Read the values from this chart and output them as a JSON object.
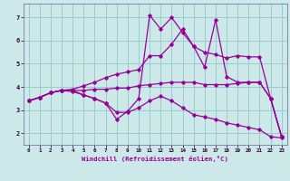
{
  "xlabel": "Windchill (Refroidissement éolien,°C)",
  "xlim": [
    -0.5,
    23.5
  ],
  "ylim": [
    1.5,
    7.6
  ],
  "xticks": [
    0,
    1,
    2,
    3,
    4,
    5,
    6,
    7,
    8,
    9,
    10,
    11,
    12,
    13,
    14,
    15,
    16,
    17,
    18,
    19,
    20,
    21,
    22,
    23
  ],
  "yticks": [
    2,
    3,
    4,
    5,
    6,
    7
  ],
  "bg_color": "#cce8e8",
  "grid_color": "#99cccc",
  "line_color": "#990099",
  "lines": [
    {
      "x": [
        0,
        1,
        2,
        3,
        4,
        5,
        6,
        7,
        8,
        9,
        10,
        11,
        12,
        13,
        14,
        15,
        16,
        17,
        18,
        19,
        20,
        21,
        22,
        23
      ],
      "y": [
        3.4,
        3.55,
        3.75,
        3.85,
        3.85,
        3.65,
        3.5,
        3.3,
        2.6,
        2.95,
        3.5,
        7.1,
        6.5,
        7.0,
        6.35,
        5.75,
        4.85,
        6.9,
        4.45,
        4.2,
        4.2,
        4.2,
        3.5,
        1.85
      ]
    },
    {
      "x": [
        0,
        1,
        2,
        3,
        4,
        5,
        6,
        7,
        8,
        9,
        10,
        11,
        12,
        13,
        14,
        15,
        16,
        17,
        18,
        19,
        20,
        21,
        22,
        23
      ],
      "y": [
        3.4,
        3.55,
        3.75,
        3.85,
        3.9,
        4.05,
        4.2,
        4.4,
        4.55,
        4.65,
        4.75,
        5.35,
        5.35,
        5.85,
        6.5,
        5.75,
        5.5,
        5.4,
        5.25,
        5.35,
        5.3,
        5.3,
        3.5,
        1.85
      ]
    },
    {
      "x": [
        0,
        1,
        2,
        3,
        4,
        5,
        6,
        7,
        8,
        9,
        10,
        11,
        12,
        13,
        14,
        15,
        16,
        17,
        18,
        19,
        20,
        21,
        22,
        23
      ],
      "y": [
        3.4,
        3.55,
        3.75,
        3.85,
        3.85,
        3.85,
        3.9,
        3.9,
        3.95,
        3.95,
        4.05,
        4.1,
        4.15,
        4.2,
        4.2,
        4.2,
        4.1,
        4.1,
        4.1,
        4.15,
        4.2,
        4.2,
        3.5,
        1.85
      ]
    },
    {
      "x": [
        0,
        1,
        2,
        3,
        4,
        5,
        6,
        7,
        8,
        9,
        10,
        11,
        12,
        13,
        14,
        15,
        16,
        17,
        18,
        19,
        20,
        21,
        22,
        23
      ],
      "y": [
        3.4,
        3.55,
        3.75,
        3.85,
        3.8,
        3.65,
        3.5,
        3.3,
        2.9,
        2.9,
        3.1,
        3.4,
        3.6,
        3.4,
        3.1,
        2.8,
        2.7,
        2.6,
        2.45,
        2.35,
        2.25,
        2.15,
        1.85,
        1.8
      ]
    }
  ]
}
